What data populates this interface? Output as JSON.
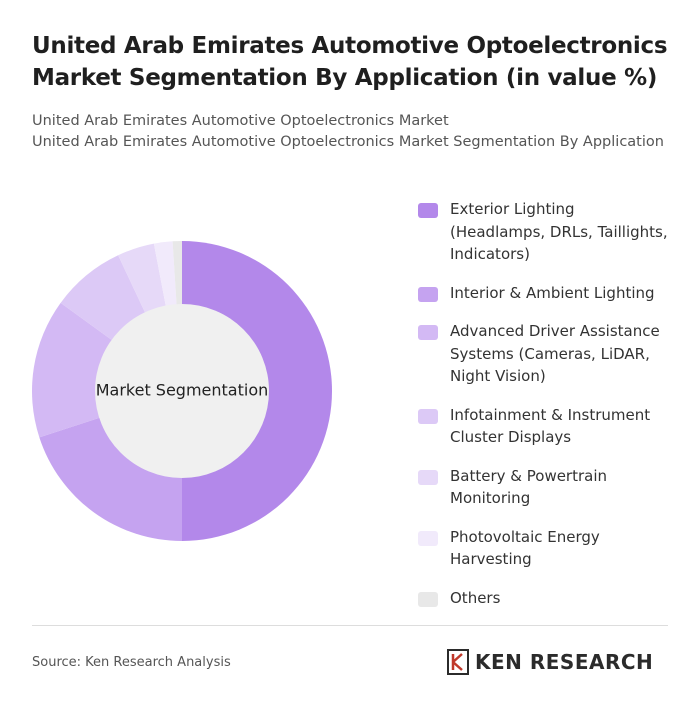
{
  "chart_data": {
    "type": "donut",
    "title": "United Arab Emirates Automotive Optoelectronics Market Segmentation By Application (in value %)",
    "subtitles": [
      "United Arab Emirates Automotive Optoelectronics Market",
      "United Arab Emirates Automotive Optoelectronics Market Segmentation By Application"
    ],
    "center_label": "Market Segmentation",
    "categories": [
      "Exterior Lighting (Headlamps, DRLs, Taillights, Indicators)",
      "Interior & Ambient Lighting",
      "Advanced Driver Assistance Systems (Cameras, LiDAR, Night Vision)",
      "Infotainment & Instrument Cluster Displays",
      "Battery & Powertrain Monitoring",
      "Photovoltaic Energy Harvesting",
      "Others"
    ],
    "values": [
      50,
      20,
      15,
      8,
      4,
      2,
      1
    ],
    "colors": [
      "#b388ea",
      "#c5a3f0",
      "#d3b9f4",
      "#dcc9f6",
      "#e6d9f8",
      "#f1eafb",
      "#e8e8e8"
    ],
    "source": "Source: Ken Research Analysis",
    "logo": "KEN RESEARCH"
  }
}
